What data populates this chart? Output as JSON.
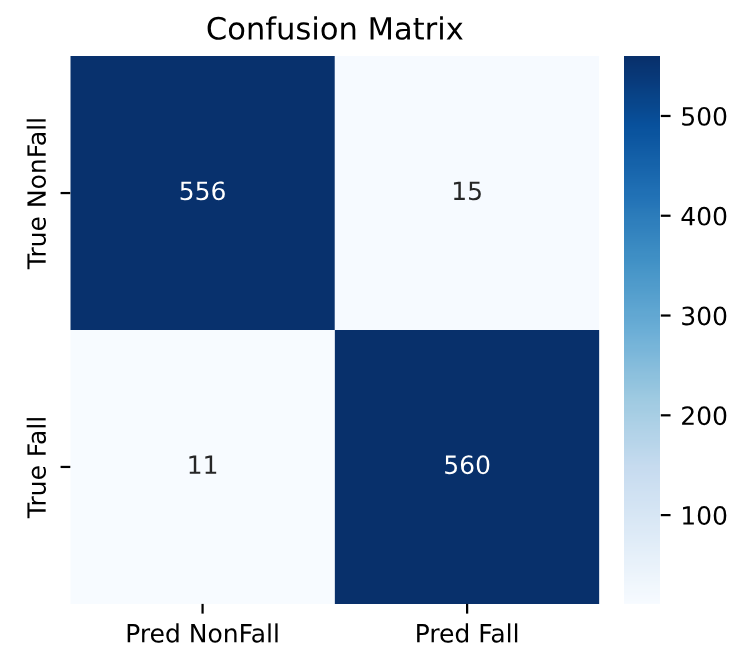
{
  "chart_data": {
    "type": "heatmap",
    "title": "Confusion Matrix",
    "categories": [
      "Pred NonFall",
      "Pred Fall"
    ],
    "y_categories": [
      "True NonFall",
      "True Fall"
    ],
    "cells": [
      [
        556,
        15
      ],
      [
        11,
        560
      ]
    ],
    "data_labels": true,
    "clim": [
      11,
      560
    ],
    "cticks": [
      100,
      200,
      300,
      400,
      500
    ]
  }
}
